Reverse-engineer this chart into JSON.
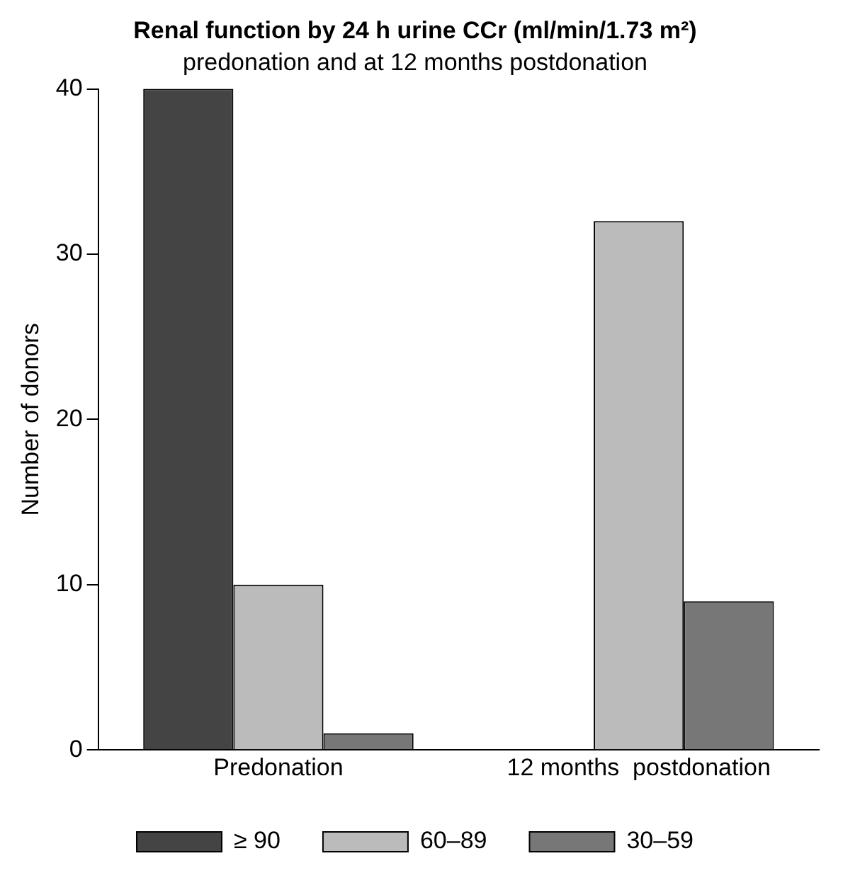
{
  "chart_data": {
    "type": "bar",
    "title": "Renal function by 24 h urine CCr (ml/min/1.73 m²)",
    "subtitle": "predonation and at 12 months postdonation",
    "ylabel": "Number of donors",
    "categories": [
      "Predonation",
      "12 months  postdonation"
    ],
    "series": [
      {
        "name": "≥ 90",
        "color": "#444444",
        "values": [
          40,
          0
        ]
      },
      {
        "name": "60–89",
        "color": "#bbbbbb",
        "values": [
          10,
          32
        ]
      },
      {
        "name": "30–59",
        "color": "#777777",
        "values": [
          1,
          9
        ]
      }
    ],
    "ylim": [
      0,
      40
    ],
    "yticks": [
      0,
      10,
      20,
      30,
      40
    ],
    "grid": false,
    "legend": "bottom"
  }
}
